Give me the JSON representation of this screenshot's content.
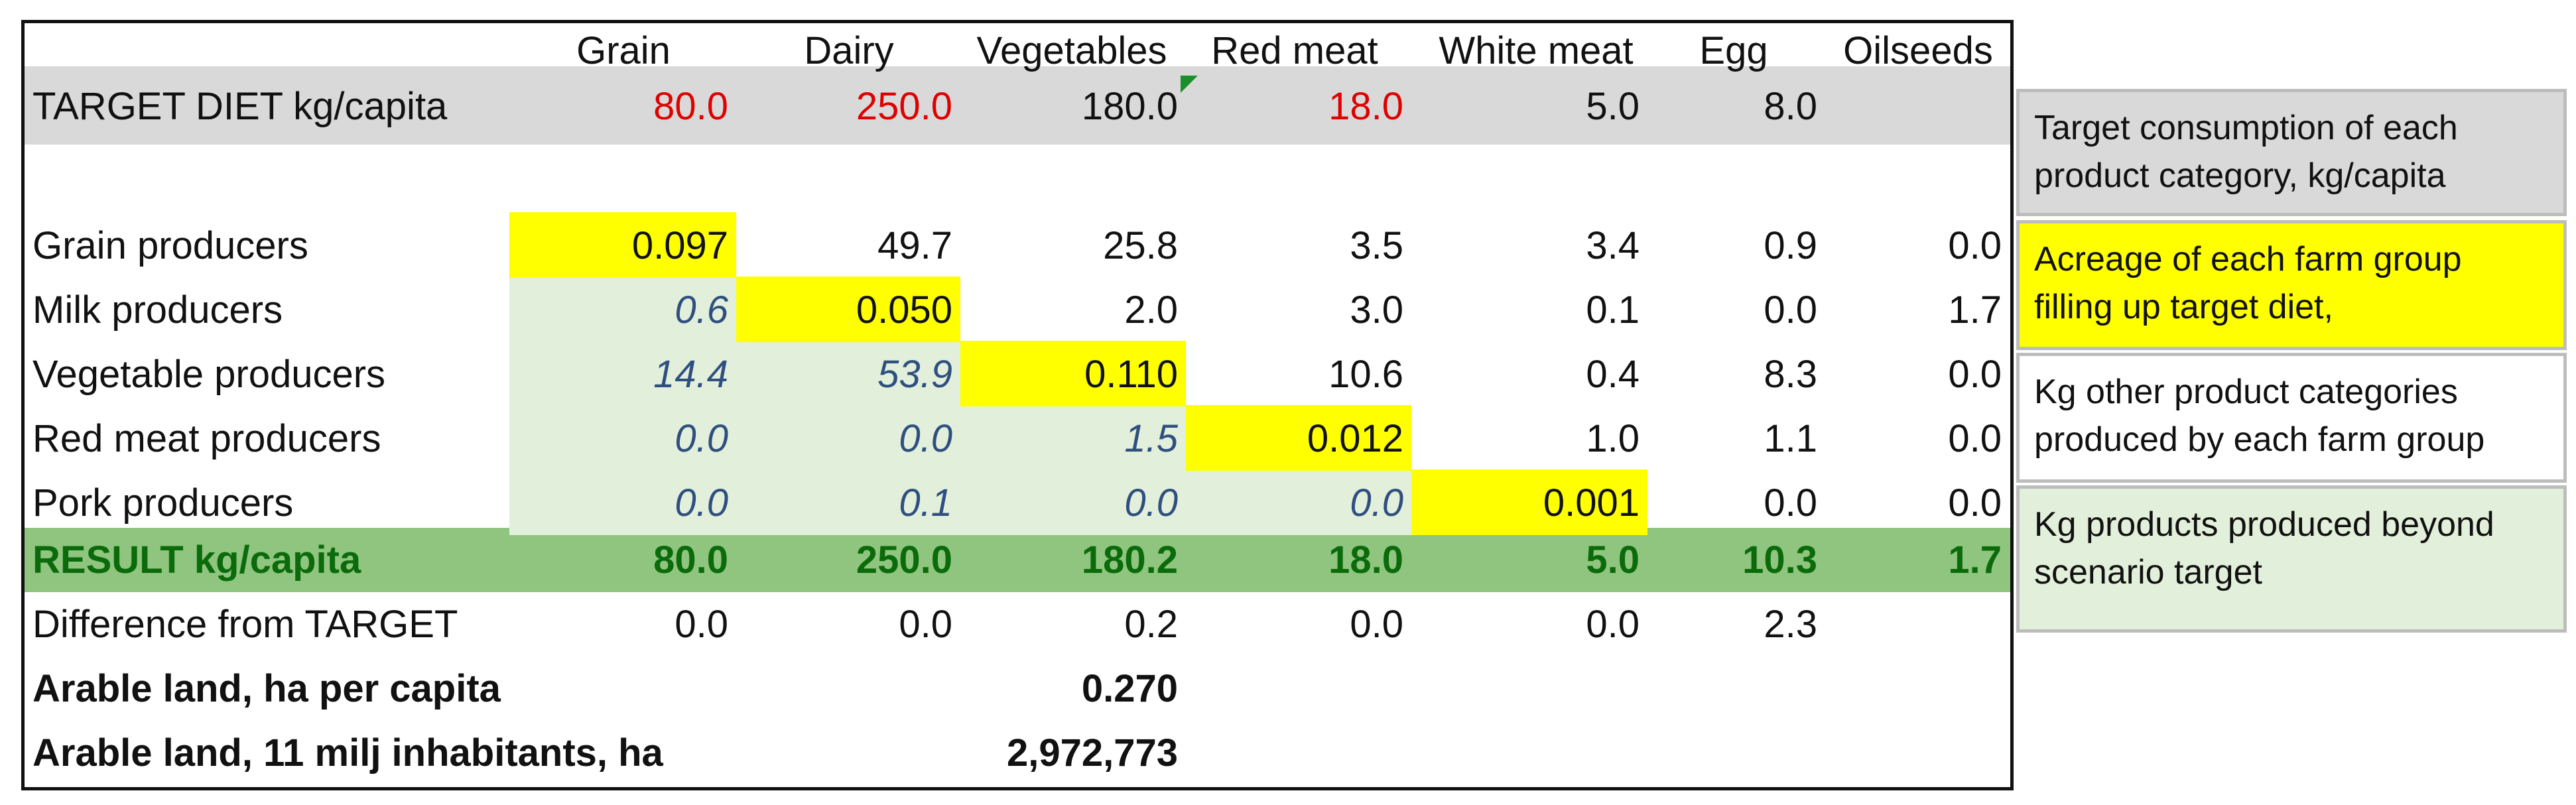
{
  "columns": [
    "Grain",
    "Dairy",
    "Vegetables",
    "Red meat",
    "White meat",
    "Egg",
    "Oilseeds"
  ],
  "target": {
    "label": "TARGET DIET kg/capita",
    "values": [
      "80.0",
      "250.0",
      "180.0",
      "18.0",
      "5.0",
      "8.0",
      ""
    ]
  },
  "producers": [
    {
      "label": "Grain producers",
      "values": [
        "0.097",
        "49.7",
        "25.8",
        "3.5",
        "3.4",
        "0.9",
        "0.0"
      ]
    },
    {
      "label": "Milk producers",
      "values": [
        "0.6",
        "0.050",
        "2.0",
        "3.0",
        "0.1",
        "0.0",
        "1.7"
      ]
    },
    {
      "label": "Vegetable producers",
      "values": [
        "14.4",
        "53.9",
        "0.110",
        "10.6",
        "0.4",
        "8.3",
        "0.0"
      ]
    },
    {
      "label": "Red meat producers",
      "values": [
        "0.0",
        "0.0",
        "1.5",
        "0.012",
        "1.0",
        "1.1",
        "0.0"
      ]
    },
    {
      "label": "Pork producers",
      "values": [
        "0.0",
        "0.1",
        "0.0",
        "0.0",
        "0.001",
        "0.0",
        "0.0"
      ]
    }
  ],
  "result": {
    "label": "RESULT kg/capita",
    "values": [
      "80.0",
      "250.0",
      "180.2",
      "18.0",
      "5.0",
      "10.3",
      "1.7"
    ]
  },
  "difference": {
    "label": "Difference from TARGET",
    "values": [
      "0.0",
      "0.0",
      "0.2",
      "0.0",
      "0.0",
      "2.3",
      ""
    ]
  },
  "arable_per_capita": {
    "label": "Arable land, ha per capita",
    "value": "0.270"
  },
  "arable_total": {
    "label": "Arable land, 11 milj inhabitants, ha",
    "value": "2,972,773"
  },
  "legend": [
    "Target consumption of each product category, kg/capita",
    "Acreage of each farm group filling up target diet,",
    "Kg other product categories produced by each farm group",
    "Kg products produced beyond scenario target"
  ],
  "colors": {
    "target_band": "#d9d9d9",
    "result_band": "#8fc57f",
    "acreage_highlight": "#ffff00",
    "surplus_fill": "#e2efda",
    "target_red": "#e00000",
    "surplus_text": "#2f4f80",
    "result_text": "#0b6b0b"
  }
}
